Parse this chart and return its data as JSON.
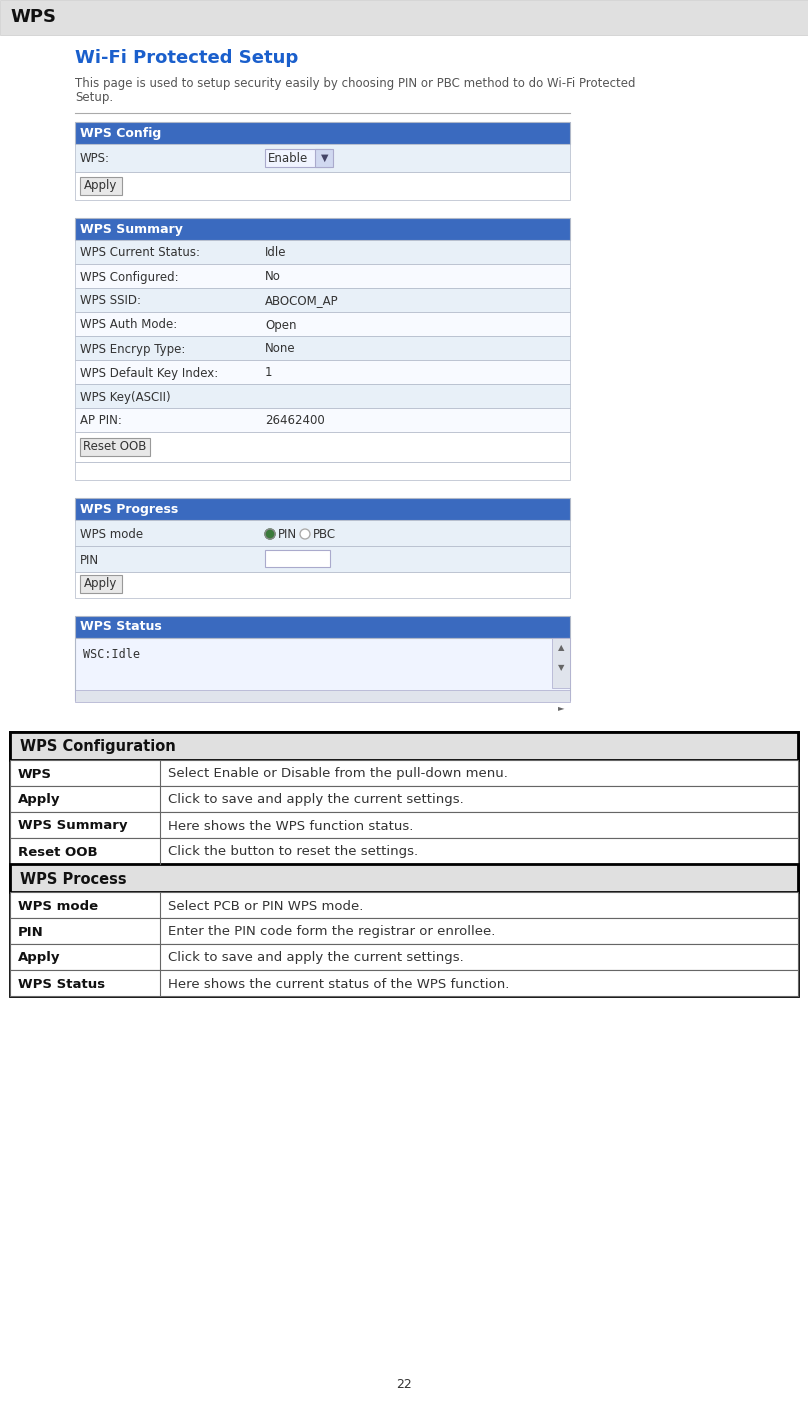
{
  "page_title": "WPS",
  "page_title_bg": "#e0e0e0",
  "section_title": "Wi-Fi Protected Setup",
  "section_title_color": "#1a5fcc",
  "description_color": "#555555",
  "header_bg": "#3a6abf",
  "header_text_color": "#ffffff",
  "row_bg_light": "#e8f0f8",
  "row_bg_white": "#ffffff",
  "border_color": "#b0b8c8",
  "button_bg": "#e8e8e8",
  "button_border": "#999999",
  "wps_config_header": "WPS Config",
  "wps_summary_header": "WPS Summary",
  "wps_progress_header": "WPS Progress",
  "wps_status_header": "WPS Status",
  "wps_status_content": "WSC:Idle",
  "ref_table_outer_border": "#000000",
  "ref_sections": [
    {
      "header": "WPS Configuration",
      "rows": [
        {
          "term": "WPS",
          "desc": "Select Enable or Disable from the pull-down menu."
        },
        {
          "term": "Apply",
          "desc": "Click to save and apply the current settings."
        },
        {
          "term": "WPS Summary",
          "desc": "Here shows the WPS function status."
        },
        {
          "term": "Reset OOB",
          "desc": "Click the button to reset the settings."
        }
      ]
    },
    {
      "header": "WPS Process",
      "rows": [
        {
          "term": "WPS mode",
          "desc": "Select PCB or PIN WPS mode."
        },
        {
          "term": "PIN",
          "desc": "Enter the PIN code form the registrar or enrollee."
        },
        {
          "term": "Apply",
          "desc": "Click to save and apply the current settings."
        },
        {
          "term": "WPS Status",
          "desc": "Here shows the current status of the WPS function."
        }
      ]
    }
  ],
  "page_number": "22",
  "figure_width": 8.08,
  "figure_height": 14.07,
  "dpi": 100
}
